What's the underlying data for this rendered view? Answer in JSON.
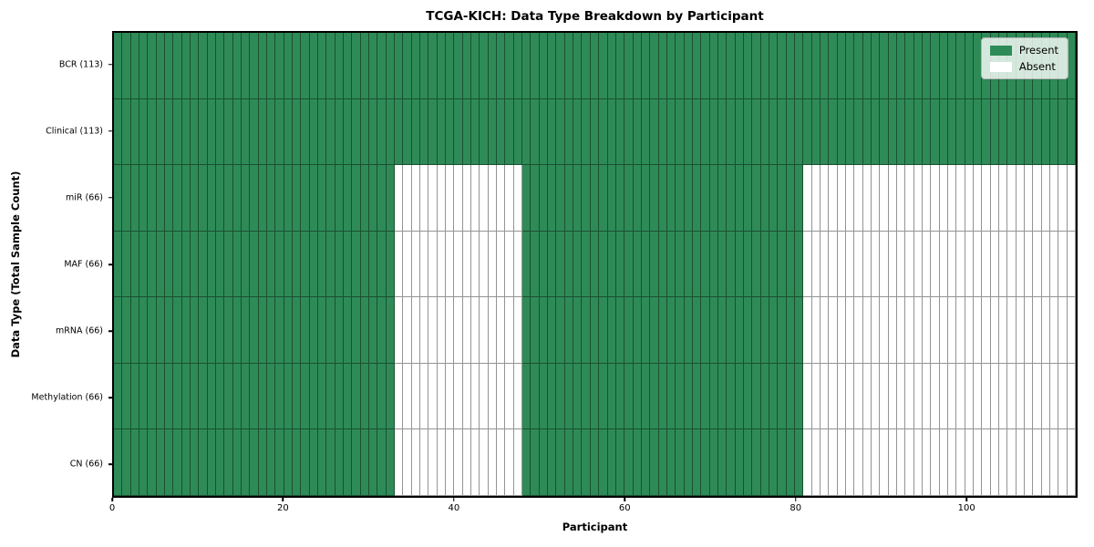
{
  "chart_data": {
    "type": "heatmap",
    "title": "TCGA-KICH: Data Type Breakdown by Participant",
    "xlabel": "Participant",
    "ylabel": "Data Type (Total Sample Count)",
    "n_participants": 113,
    "xlim": [
      0,
      113
    ],
    "x_ticks": [
      0,
      20,
      40,
      60,
      80,
      100
    ],
    "grid": "cell-outlines",
    "present_color": "#2e8b57",
    "absent_color": "#ffffff",
    "legend": {
      "position": "upper right",
      "items": [
        {
          "label": "Present",
          "color": "#2e8b57"
        },
        {
          "label": "Absent",
          "color": "#ffffff"
        }
      ]
    },
    "rows": [
      {
        "label": "BCR (113)",
        "data_type": "BCR",
        "total_samples": 113,
        "present_segments": [
          [
            0,
            113
          ]
        ]
      },
      {
        "label": "Clinical (113)",
        "data_type": "Clinical",
        "total_samples": 113,
        "present_segments": [
          [
            0,
            113
          ]
        ]
      },
      {
        "label": "miR (66)",
        "data_type": "miR",
        "total_samples": 66,
        "present_segments": [
          [
            0,
            33
          ],
          [
            48,
            81
          ]
        ]
      },
      {
        "label": "MAF (66)",
        "data_type": "MAF",
        "total_samples": 66,
        "present_segments": [
          [
            0,
            33
          ],
          [
            48,
            81
          ]
        ]
      },
      {
        "label": "mRNA (66)",
        "data_type": "mRNA",
        "total_samples": 66,
        "present_segments": [
          [
            0,
            33
          ],
          [
            48,
            81
          ]
        ]
      },
      {
        "label": "Methylation (66)",
        "data_type": "Methylation",
        "total_samples": 66,
        "present_segments": [
          [
            0,
            33
          ],
          [
            48,
            81
          ]
        ]
      },
      {
        "label": "CN (66)",
        "data_type": "CN",
        "total_samples": 66,
        "present_segments": [
          [
            0,
            33
          ],
          [
            48,
            81
          ]
        ]
      }
    ]
  }
}
